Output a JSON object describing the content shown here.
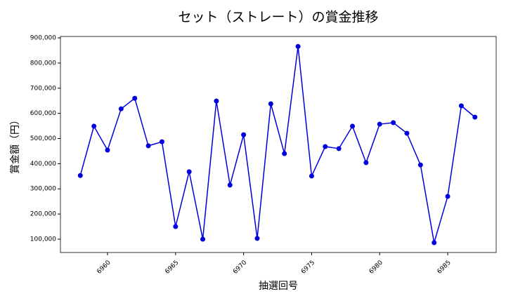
{
  "chart_data": {
    "type": "line",
    "title": "セット（ストレート）の賞金推移",
    "x_label": "抽選回号",
    "y_label": "賞金額（円）",
    "x": [
      6958,
      6959,
      6960,
      6961,
      6962,
      6963,
      6964,
      6965,
      6966,
      6967,
      6968,
      6969,
      6970,
      6971,
      6972,
      6973,
      6974,
      6975,
      6976,
      6977,
      6978,
      6979,
      6980,
      6981,
      6982,
      6983,
      6984,
      6985,
      6986,
      6987
    ],
    "series": [
      {
        "name": "賞金",
        "color": "#0000dd",
        "values": [
          353000,
          549000,
          454000,
          618000,
          660000,
          471000,
          487000,
          150000,
          368000,
          100000,
          649000,
          315000,
          515000,
          103000,
          638000,
          440000,
          866000,
          351000,
          468000,
          460000,
          549000,
          404000,
          557000,
          563000,
          521000,
          395000,
          86000,
          270000,
          630000,
          585000
        ]
      }
    ],
    "xlim": [
      6956.54,
      6988.56
    ],
    "xticks": [
      6960,
      6965,
      6970,
      6975,
      6980,
      6985
    ],
    "ylim": [
      47000,
      905600
    ],
    "yticks": [
      {
        "value": 100000,
        "label": "100,000"
      },
      {
        "value": 200000,
        "label": "200,000"
      },
      {
        "value": 300000,
        "label": "300,000"
      },
      {
        "value": 400000,
        "label": "400,000"
      },
      {
        "value": 500000,
        "label": "500,000"
      },
      {
        "value": 600000,
        "label": "600,000"
      },
      {
        "value": 700000,
        "label": "700,000"
      },
      {
        "value": 800000,
        "label": "800,000"
      },
      {
        "value": 900000,
        "label": "900,000"
      }
    ],
    "grid": true
  }
}
